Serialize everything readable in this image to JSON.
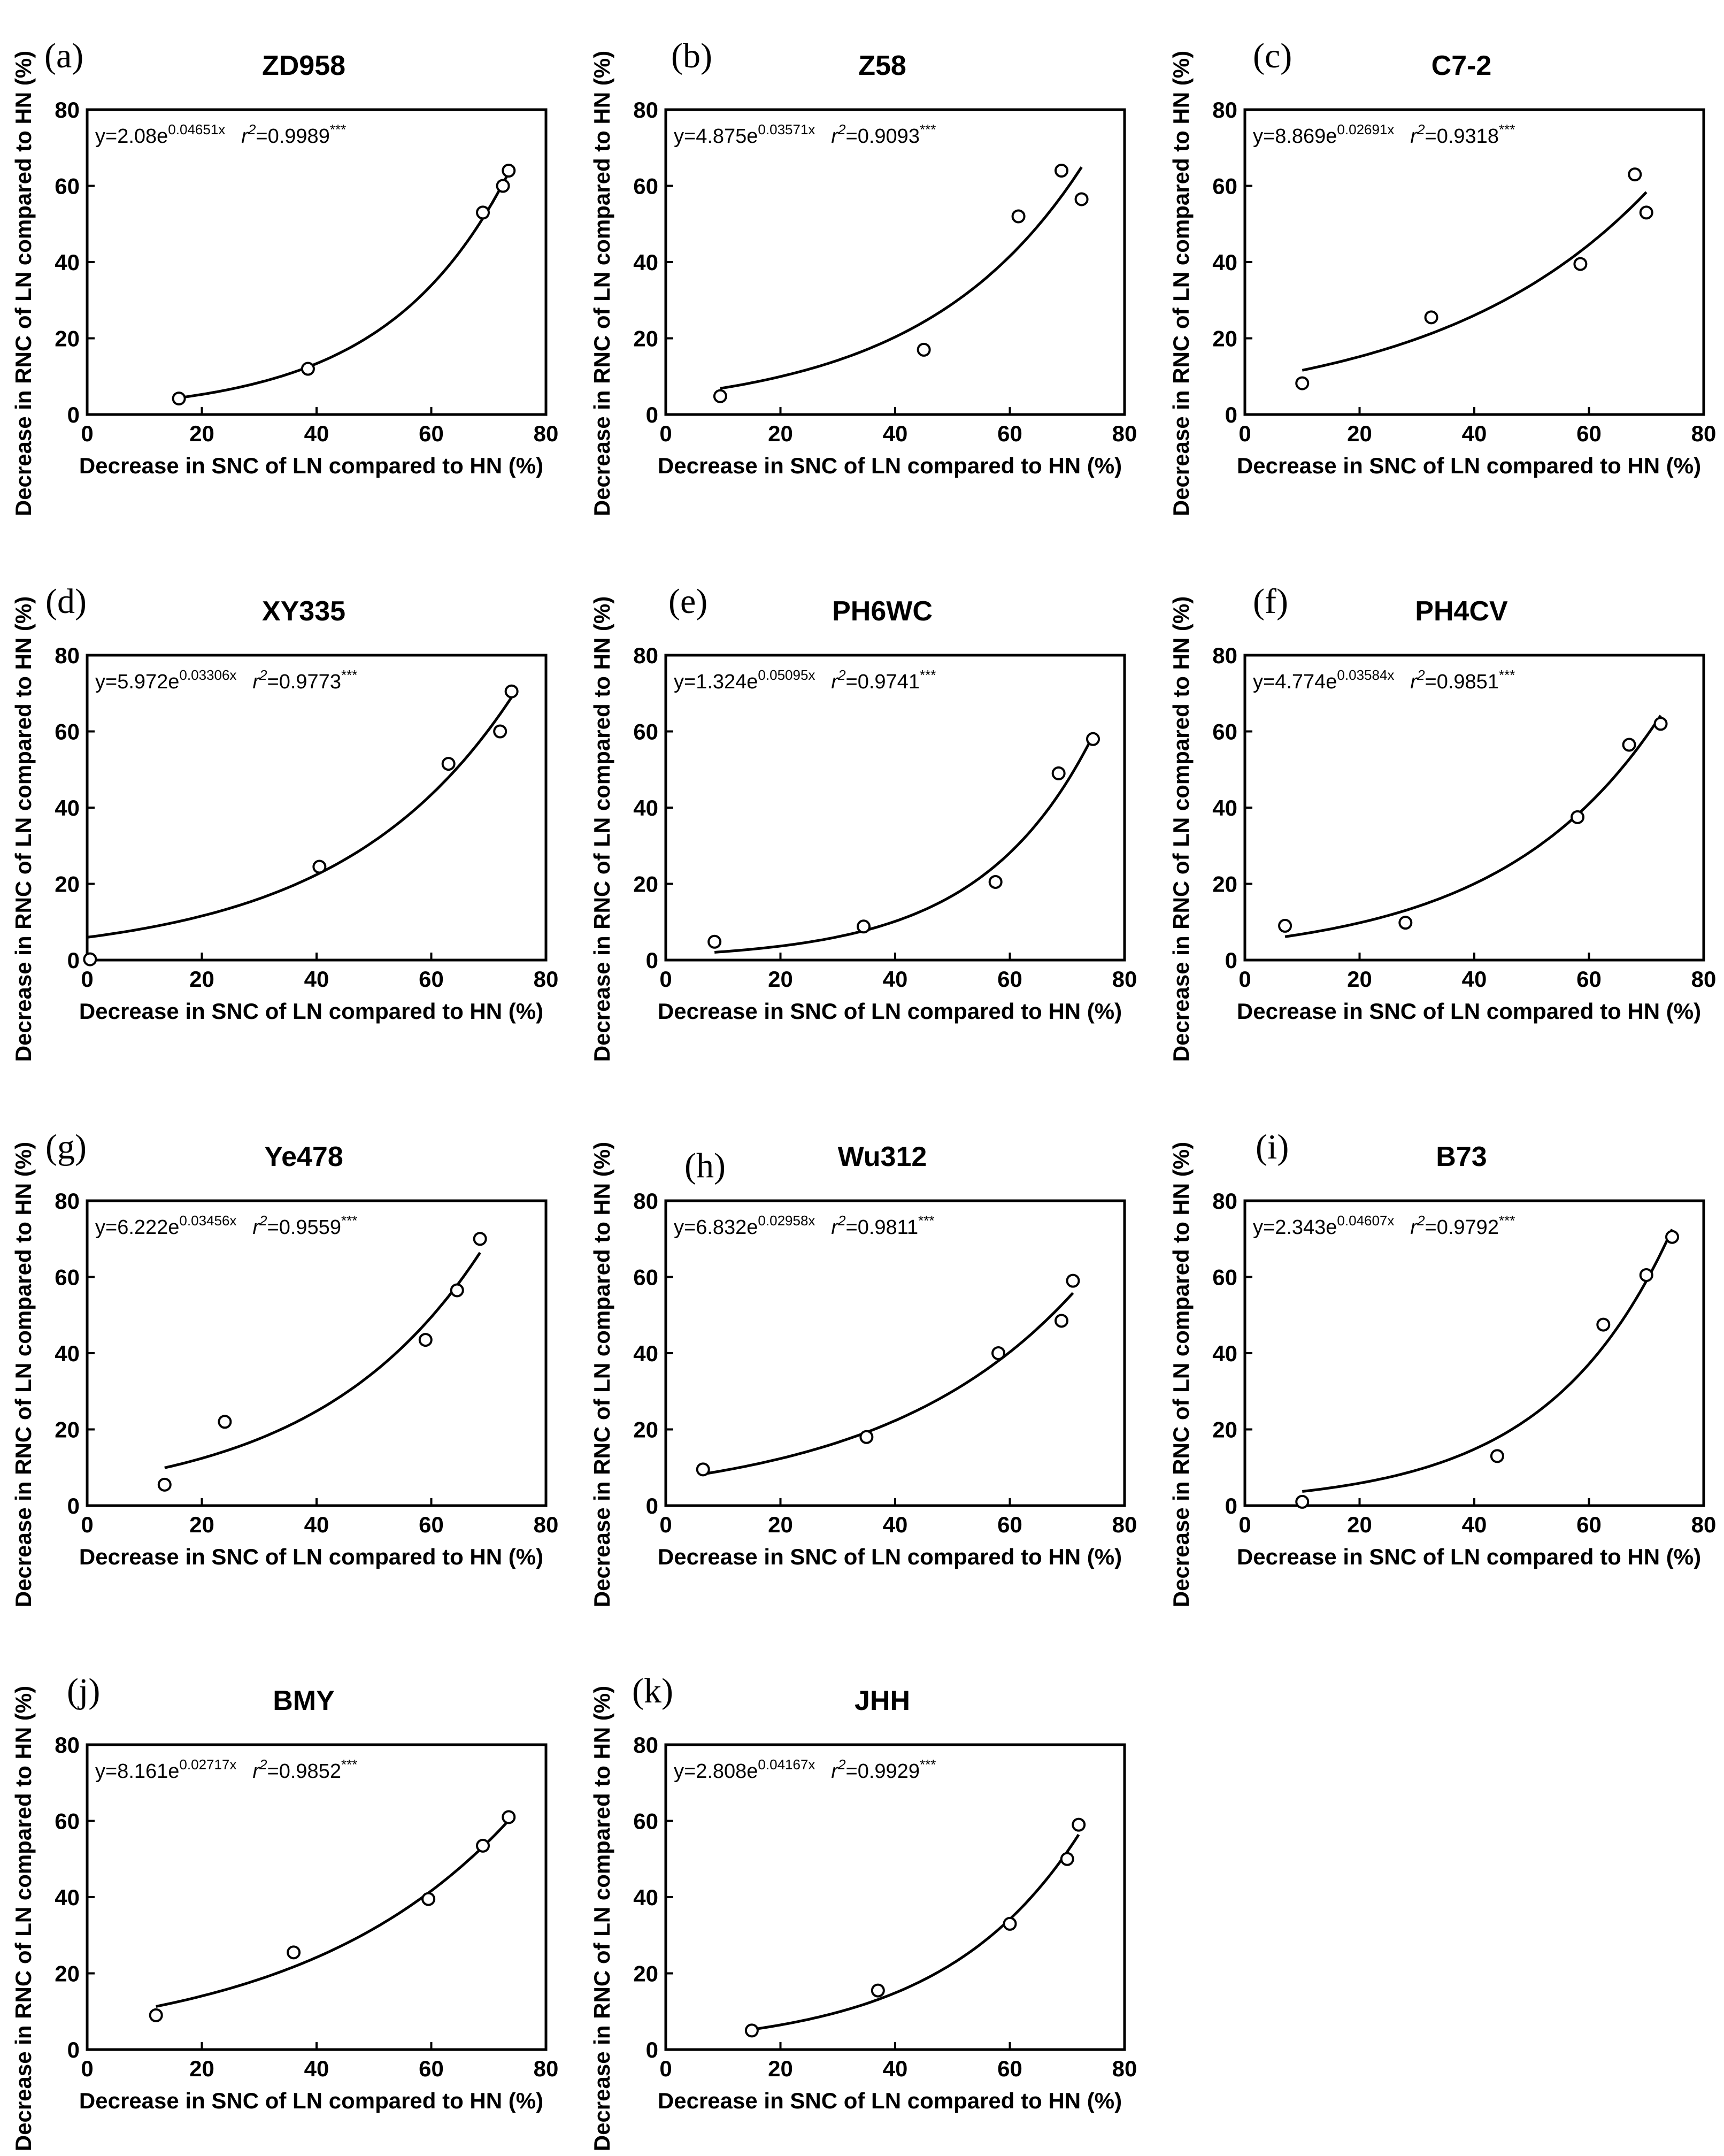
{
  "figure": {
    "x_axis_label": "Decrease in SNC of LN compared to HN (%)",
    "y_axis_label": "Decrease in RNC of LN compared to HN (%)"
  },
  "chart_data": [
    {
      "panel": "(a)",
      "title": "ZD958",
      "type": "scatter",
      "eq_a": "2.08",
      "eq_b": "0.04651",
      "r2": "0.9989",
      "sig": "***",
      "x": [
        16,
        38.5,
        69,
        72.5,
        73.5
      ],
      "y": [
        4.2,
        12,
        53,
        60,
        64
      ],
      "fit": {
        "a": 2.08,
        "b": 0.04651,
        "x0": 16,
        "x1": 73.5
      },
      "xlim": [
        0,
        80
      ],
      "ylim": [
        0,
        80
      ],
      "xticks": [
        0,
        20,
        40,
        60,
        80
      ],
      "yticks": [
        0,
        20,
        40,
        60,
        80
      ]
    },
    {
      "panel": "(b)",
      "title": "Z58",
      "type": "scatter",
      "eq_a": "4.875",
      "eq_b": "0.03571",
      "r2": "0.9093",
      "sig": "***",
      "x": [
        9.5,
        45,
        61.5,
        69,
        72.5
      ],
      "y": [
        4.8,
        17,
        52,
        64,
        56.5
      ],
      "fit": {
        "a": 4.875,
        "b": 0.03571,
        "x0": 9.5,
        "x1": 72.5
      },
      "xlim": [
        0,
        80
      ],
      "ylim": [
        0,
        80
      ],
      "xticks": [
        0,
        20,
        40,
        60,
        80
      ],
      "yticks": [
        0,
        20,
        40,
        60,
        80
      ]
    },
    {
      "panel": "(c)",
      "title": "C7-2",
      "type": "scatter",
      "eq_a": "8.869",
      "eq_b": "0.02691",
      "r2": "0.9318",
      "sig": "***",
      "x": [
        10,
        32.5,
        58.5,
        68,
        70
      ],
      "y": [
        8.2,
        25.5,
        39.5,
        63,
        53
      ],
      "fit": {
        "a": 8.869,
        "b": 0.02691,
        "x0": 10,
        "x1": 70
      },
      "xlim": [
        0,
        80
      ],
      "ylim": [
        0,
        80
      ],
      "xticks": [
        0,
        20,
        40,
        60,
        80
      ],
      "yticks": [
        0,
        20,
        40,
        60,
        80
      ]
    },
    {
      "panel": "(d)",
      "title": "XY335",
      "type": "scatter",
      "eq_a": "5.972",
      "eq_b": "0.03306",
      "r2": "0.9773",
      "sig": "***",
      "x": [
        0.5,
        40.5,
        63,
        72,
        74
      ],
      "y": [
        0.2,
        24.5,
        51.5,
        60,
        70.5
      ],
      "fit": {
        "a": 5.972,
        "b": 0.03306,
        "x0": 0,
        "x1": 74
      },
      "xlim": [
        0,
        80
      ],
      "ylim": [
        0,
        80
      ],
      "xticks": [
        0,
        20,
        40,
        60,
        80
      ],
      "yticks": [
        0,
        20,
        40,
        60,
        80
      ]
    },
    {
      "panel": "(e)",
      "title": "PH6WC",
      "type": "scatter",
      "eq_a": "1.324",
      "eq_b": "0.05095",
      "r2": "0.9741",
      "sig": "***",
      "x": [
        8.5,
        34.5,
        57.5,
        68.5,
        74.5
      ],
      "y": [
        4.8,
        8.8,
        20.5,
        49,
        58
      ],
      "fit": {
        "a": 1.324,
        "b": 0.05095,
        "x0": 8.5,
        "x1": 74.5
      },
      "xlim": [
        0,
        80
      ],
      "ylim": [
        0,
        80
      ],
      "xticks": [
        0,
        20,
        40,
        60,
        80
      ],
      "yticks": [
        0,
        20,
        40,
        60,
        80
      ]
    },
    {
      "panel": "(f)",
      "title": "PH4CV",
      "type": "scatter",
      "eq_a": "4.774",
      "eq_b": "0.03584",
      "r2": "0.9851",
      "sig": "***",
      "x": [
        7,
        28,
        58,
        67,
        72.5
      ],
      "y": [
        9,
        9.8,
        37.5,
        56.5,
        62
      ],
      "fit": {
        "a": 4.774,
        "b": 0.03584,
        "x0": 7,
        "x1": 72.5
      },
      "xlim": [
        0,
        80
      ],
      "ylim": [
        0,
        80
      ],
      "xticks": [
        0,
        20,
        40,
        60,
        80
      ],
      "yticks": [
        0,
        20,
        40,
        60,
        80
      ]
    },
    {
      "panel": "(g)",
      "title": "Ye478",
      "type": "scatter",
      "eq_a": "6.222",
      "eq_b": "0.03456",
      "r2": "0.9559",
      "sig": "***",
      "x": [
        13.5,
        24,
        59,
        64.5,
        68.5
      ],
      "y": [
        5.5,
        22,
        43.5,
        56.5,
        70
      ],
      "fit": {
        "a": 6.222,
        "b": 0.03456,
        "x0": 13.5,
        "x1": 68.5
      },
      "xlim": [
        0,
        80
      ],
      "ylim": [
        0,
        80
      ],
      "xticks": [
        0,
        20,
        40,
        60,
        80
      ],
      "yticks": [
        0,
        20,
        40,
        60,
        80
      ]
    },
    {
      "panel": "(h)",
      "title": "Wu312",
      "type": "scatter",
      "eq_a": "6.832",
      "eq_b": "0.02958",
      "r2": "0.9811",
      "sig": "***",
      "x": [
        6.5,
        35,
        58,
        69,
        71
      ],
      "y": [
        9.5,
        18,
        40,
        48.5,
        59
      ],
      "fit": {
        "a": 6.832,
        "b": 0.02958,
        "x0": 6.5,
        "x1": 71
      },
      "xlim": [
        0,
        80
      ],
      "ylim": [
        0,
        80
      ],
      "xticks": [
        0,
        20,
        40,
        60,
        80
      ],
      "yticks": [
        0,
        20,
        40,
        60,
        80
      ]
    },
    {
      "panel": "(i)",
      "title": "B73",
      "type": "scatter",
      "eq_a": "2.343",
      "eq_b": "0.04607",
      "r2": "0.9792",
      "sig": "***",
      "x": [
        10,
        44,
        62.5,
        70,
        74.5
      ],
      "y": [
        1,
        13,
        47.5,
        60.5,
        70.5
      ],
      "fit": {
        "a": 2.343,
        "b": 0.04607,
        "x0": 10,
        "x1": 74.5
      },
      "xlim": [
        0,
        80
      ],
      "ylim": [
        0,
        80
      ],
      "xticks": [
        0,
        20,
        40,
        60,
        80
      ],
      "yticks": [
        0,
        20,
        40,
        60,
        80
      ]
    },
    {
      "panel": "(j)",
      "title": "BMY",
      "type": "scatter",
      "eq_a": "8.161",
      "eq_b": "0.02717",
      "r2": "0.9852",
      "sig": "***",
      "x": [
        12,
        36,
        59.5,
        69,
        73.5
      ],
      "y": [
        9,
        25.5,
        39.5,
        53.5,
        61
      ],
      "fit": {
        "a": 8.161,
        "b": 0.02717,
        "x0": 12,
        "x1": 73.5
      },
      "xlim": [
        0,
        80
      ],
      "ylim": [
        0,
        80
      ],
      "xticks": [
        0,
        20,
        40,
        60,
        80
      ],
      "yticks": [
        0,
        20,
        40,
        60,
        80
      ]
    },
    {
      "panel": "(k)",
      "title": "JHH",
      "type": "scatter",
      "eq_a": "2.808",
      "eq_b": "0.04167",
      "r2": "0.9929",
      "sig": "***",
      "x": [
        15,
        37,
        60,
        70,
        72
      ],
      "y": [
        5,
        15.5,
        33,
        50,
        59
      ],
      "fit": {
        "a": 2.808,
        "b": 0.04167,
        "x0": 15,
        "x1": 72
      },
      "xlim": [
        0,
        80
      ],
      "ylim": [
        0,
        80
      ],
      "xticks": [
        0,
        20,
        40,
        60,
        80
      ],
      "yticks": [
        0,
        20,
        40,
        60,
        80
      ]
    }
  ]
}
